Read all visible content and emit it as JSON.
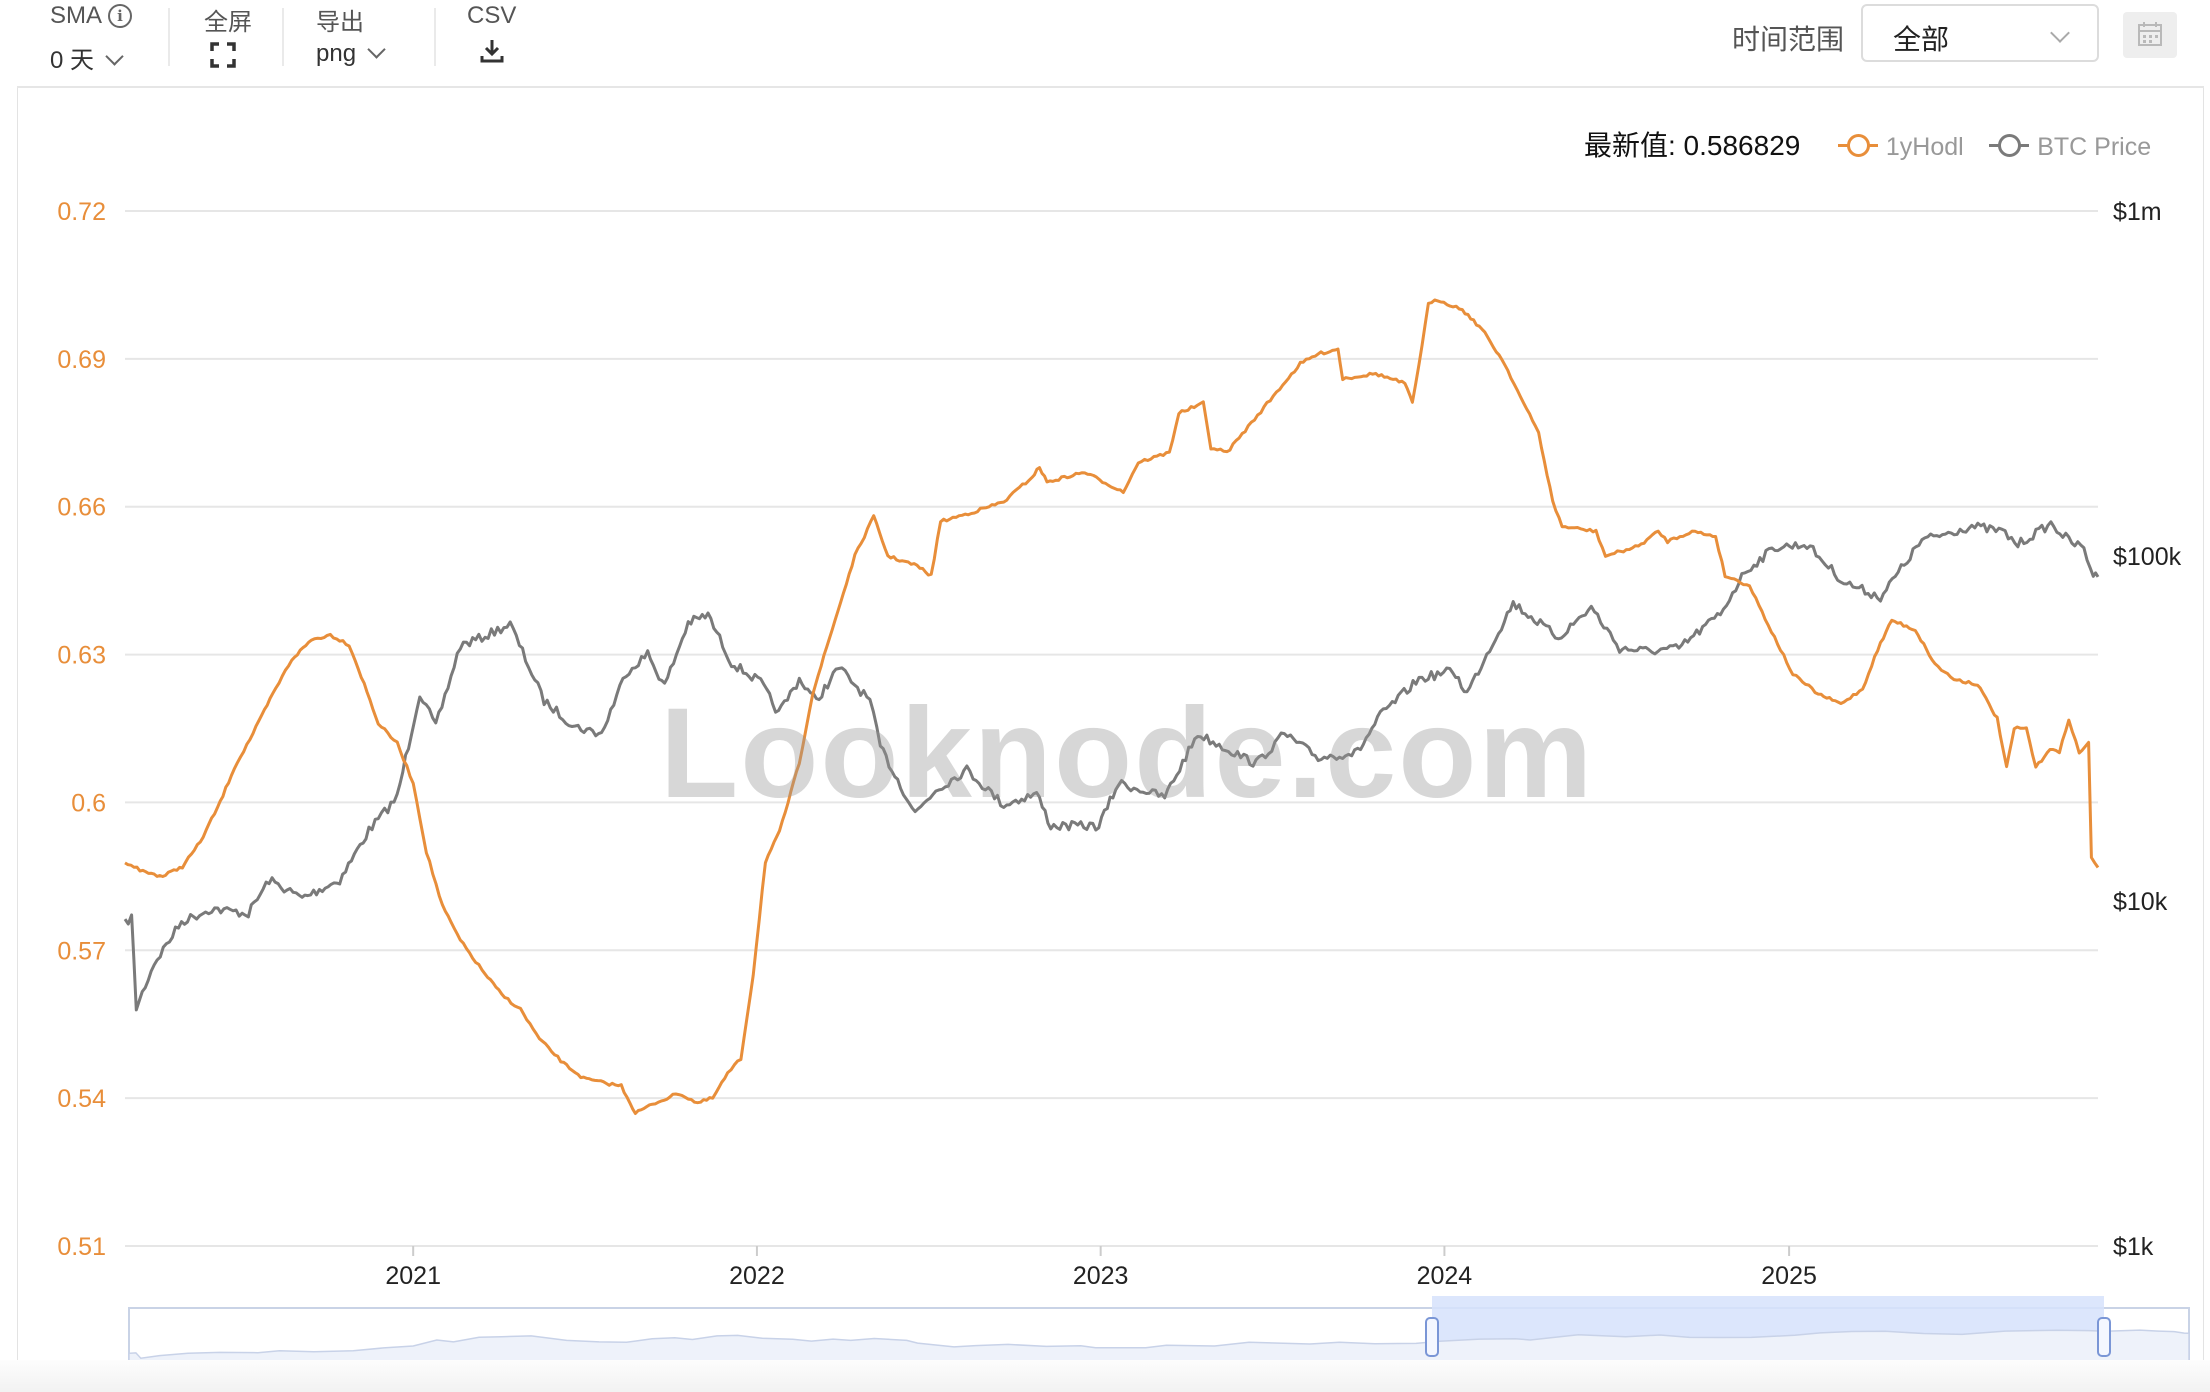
{
  "toolbar": {
    "sma_label": "SMA",
    "sma_value": "0 天",
    "fullscreen_label": "全屏",
    "export_label": "导出",
    "export_value": "png",
    "csv_label": "CSV",
    "time_range_label": "时间范围",
    "time_range_value": "全部"
  },
  "legend": {
    "latest_value_text": "最新值: 0.586829",
    "series_1": "1yHodl",
    "series_2": "BTC Price"
  },
  "watermark": "Looknode.com",
  "colors": {
    "hodl": "#e88e3a",
    "btc": "#7a7a7a",
    "axis_left": "#e88e3a",
    "grid": "#e6e6e6",
    "navigator_selected": "#d6e2fb"
  },
  "chart_data": {
    "type": "line",
    "x_tick_labels": [
      "2021",
      "2022",
      "2023",
      "2024",
      "2025"
    ],
    "y_left": {
      "ticks": [
        0.72,
        0.69,
        0.66,
        0.63,
        0.6,
        0.57,
        0.54,
        0.51
      ],
      "tick_labels": [
        "0.72",
        "0.69",
        "0.66",
        "0.63",
        "0.6",
        "0.57",
        "0.54",
        "0.51"
      ],
      "range": [
        0.51,
        0.72
      ]
    },
    "y_right": {
      "scale": "log",
      "tick_labels": [
        "$1m",
        "$100k",
        "$10k",
        "$1k"
      ],
      "ticks": [
        1000000,
        100000,
        10000,
        1000
      ],
      "range": [
        1000,
        1000000
      ]
    },
    "x_range": [
      "2020-03-01",
      "2025-11-25"
    ],
    "series": [
      {
        "name": "1yHodl",
        "axis": "left",
        "points": [
          [
            "2020-03-01",
            0.588
          ],
          [
            "2020-03-20",
            0.586
          ],
          [
            "2020-04-10",
            0.585
          ],
          [
            "2020-05-01",
            0.587
          ],
          [
            "2020-05-20",
            0.592
          ],
          [
            "2020-06-10",
            0.6
          ],
          [
            "2020-06-25",
            0.607
          ],
          [
            "2020-07-15",
            0.614
          ],
          [
            "2020-08-05",
            0.622
          ],
          [
            "2020-08-25",
            0.629
          ],
          [
            "2020-09-15",
            0.633
          ],
          [
            "2020-10-05",
            0.634
          ],
          [
            "2020-10-25",
            0.632
          ],
          [
            "2020-11-10",
            0.624
          ],
          [
            "2020-11-25",
            0.616
          ],
          [
            "2020-12-15",
            0.612
          ],
          [
            "2021-01-01",
            0.604
          ],
          [
            "2021-01-15",
            0.59
          ],
          [
            "2021-02-01",
            0.579
          ],
          [
            "2021-02-20",
            0.572
          ],
          [
            "2021-03-15",
            0.566
          ],
          [
            "2021-04-05",
            0.561
          ],
          [
            "2021-04-25",
            0.558
          ],
          [
            "2021-05-15",
            0.552
          ],
          [
            "2021-06-10",
            0.547
          ],
          [
            "2021-07-01",
            0.544
          ],
          [
            "2021-07-25",
            0.543
          ],
          [
            "2021-08-10",
            0.5425
          ],
          [
            "2021-08-25",
            0.537
          ],
          [
            "2021-09-15",
            0.539
          ],
          [
            "2021-10-10",
            0.541
          ],
          [
            "2021-10-30",
            0.539
          ],
          [
            "2021-11-15",
            0.54
          ],
          [
            "2021-12-01",
            0.545
          ],
          [
            "2021-12-15",
            0.548
          ],
          [
            "2021-12-28",
            0.565
          ],
          [
            "2022-01-10",
            0.588
          ],
          [
            "2022-01-25",
            0.594
          ],
          [
            "2022-02-15",
            0.608
          ],
          [
            "2022-03-01",
            0.622
          ],
          [
            "2022-03-25",
            0.637
          ],
          [
            "2022-04-15",
            0.65
          ],
          [
            "2022-05-05",
            0.658
          ],
          [
            "2022-05-20",
            0.65
          ],
          [
            "2022-06-20",
            0.648
          ],
          [
            "2022-07-05",
            0.646
          ],
          [
            "2022-07-15",
            0.657
          ],
          [
            "2022-08-20",
            0.659
          ],
          [
            "2022-09-20",
            0.661
          ],
          [
            "2022-10-20",
            0.666
          ],
          [
            "2022-10-28",
            0.668
          ],
          [
            "2022-11-05",
            0.665
          ],
          [
            "2022-12-15",
            0.667
          ],
          [
            "2023-01-25",
            0.663
          ],
          [
            "2023-02-10",
            0.669
          ],
          [
            "2023-03-15",
            0.671
          ],
          [
            "2023-03-25",
            0.679
          ],
          [
            "2023-04-20",
            0.681
          ],
          [
            "2023-04-28",
            0.672
          ],
          [
            "2023-05-15",
            0.671
          ],
          [
            "2023-06-10",
            0.677
          ],
          [
            "2023-07-10",
            0.684
          ],
          [
            "2023-08-01",
            0.689
          ],
          [
            "2023-08-20",
            0.691
          ],
          [
            "2023-09-10",
            0.692
          ],
          [
            "2023-09-15",
            0.686
          ],
          [
            "2023-10-20",
            0.687
          ],
          [
            "2023-11-20",
            0.685
          ],
          [
            "2023-11-28",
            0.681
          ],
          [
            "2023-12-05",
            0.689
          ],
          [
            "2023-12-15",
            0.701
          ],
          [
            "2023-12-25",
            0.702
          ],
          [
            "2024-01-20",
            0.7
          ],
          [
            "2024-02-10",
            0.696
          ],
          [
            "2024-03-05",
            0.689
          ],
          [
            "2024-03-25",
            0.681
          ],
          [
            "2024-04-10",
            0.675
          ],
          [
            "2024-04-25",
            0.661
          ],
          [
            "2024-05-05",
            0.656
          ],
          [
            "2024-06-10",
            0.655
          ],
          [
            "2024-06-20",
            0.65
          ],
          [
            "2024-07-25",
            0.652
          ],
          [
            "2024-08-15",
            0.655
          ],
          [
            "2024-08-25",
            0.653
          ],
          [
            "2024-09-20",
            0.655
          ],
          [
            "2024-10-15",
            0.654
          ],
          [
            "2024-10-25",
            0.646
          ],
          [
            "2024-11-20",
            0.644
          ],
          [
            "2024-12-10",
            0.636
          ],
          [
            "2025-01-05",
            0.626
          ],
          [
            "2025-02-01",
            0.622
          ],
          [
            "2025-02-25",
            0.62
          ],
          [
            "2025-03-20",
            0.623
          ],
          [
            "2025-04-05",
            0.631
          ],
          [
            "2025-04-20",
            0.637
          ],
          [
            "2025-05-15",
            0.635
          ],
          [
            "2025-06-05",
            0.628
          ],
          [
            "2025-06-25",
            0.625
          ],
          [
            "2025-07-20",
            0.624
          ],
          [
            "2025-08-10",
            0.617
          ],
          [
            "2025-08-20",
            0.607
          ],
          [
            "2025-08-28",
            0.615
          ],
          [
            "2025-09-10",
            0.615
          ],
          [
            "2025-09-20",
            0.607
          ],
          [
            "2025-10-05",
            0.611
          ],
          [
            "2025-10-15",
            0.61
          ],
          [
            "2025-10-25",
            0.617
          ],
          [
            "2025-11-05",
            0.61
          ],
          [
            "2025-11-15",
            0.612
          ],
          [
            "2025-11-18",
            0.589
          ],
          [
            "2025-11-25",
            0.5868
          ]
        ]
      },
      {
        "name": "BTC Price",
        "axis": "right",
        "points": [
          [
            "2020-03-01",
            8600
          ],
          [
            "2020-03-08",
            9000
          ],
          [
            "2020-03-13",
            4900
          ],
          [
            "2020-04-01",
            6600
          ],
          [
            "2020-04-30",
            8700
          ],
          [
            "2020-06-01",
            9500
          ],
          [
            "2020-07-10",
            9200
          ],
          [
            "2020-08-01",
            11500
          ],
          [
            "2020-09-05",
            10200
          ],
          [
            "2020-10-15",
            11500
          ],
          [
            "2020-11-15",
            16000
          ],
          [
            "2020-12-15",
            20000
          ],
          [
            "2021-01-08",
            40000
          ],
          [
            "2021-01-25",
            32000
          ],
          [
            "2021-02-20",
            55000
          ],
          [
            "2021-03-15",
            58000
          ],
          [
            "2021-04-14",
            63500
          ],
          [
            "2021-05-20",
            38000
          ],
          [
            "2021-06-22",
            32000
          ],
          [
            "2021-07-20",
            30500
          ],
          [
            "2021-08-15",
            46000
          ],
          [
            "2021-09-07",
            52000
          ],
          [
            "2021-09-25",
            42000
          ],
          [
            "2021-10-20",
            64000
          ],
          [
            "2021-11-10",
            67500
          ],
          [
            "2021-12-05",
            49000
          ],
          [
            "2022-01-05",
            43000
          ],
          [
            "2022-01-24",
            35000
          ],
          [
            "2022-02-15",
            44000
          ],
          [
            "2022-03-05",
            38000
          ],
          [
            "2022-03-29",
            47500
          ],
          [
            "2022-05-01",
            38000
          ],
          [
            "2022-05-12",
            28000
          ],
          [
            "2022-06-18",
            18000
          ],
          [
            "2022-07-10",
            21000
          ],
          [
            "2022-08-12",
            24000
          ],
          [
            "2022-09-20",
            19000
          ],
          [
            "2022-10-25",
            20500
          ],
          [
            "2022-11-09",
            16500
          ],
          [
            "2022-12-30",
            16500
          ],
          [
            "2023-01-20",
            22000
          ],
          [
            "2023-03-10",
            20000
          ],
          [
            "2023-04-14",
            30500
          ],
          [
            "2023-06-15",
            25000
          ],
          [
            "2023-07-15",
            30500
          ],
          [
            "2023-08-20",
            26000
          ],
          [
            "2023-10-01",
            27000
          ],
          [
            "2023-10-25",
            34500
          ],
          [
            "2023-12-05",
            44000
          ],
          [
            "2024-01-10",
            46500
          ],
          [
            "2024-01-25",
            40000
          ],
          [
            "2024-02-15",
            52000
          ],
          [
            "2024-03-14",
            73000
          ],
          [
            "2024-05-01",
            58000
          ],
          [
            "2024-06-05",
            71000
          ],
          [
            "2024-07-05",
            54000
          ],
          [
            "2024-08-05",
            53000
          ],
          [
            "2024-09-06",
            54000
          ],
          [
            "2024-10-20",
            68000
          ],
          [
            "2024-11-15",
            90000
          ],
          [
            "2024-12-17",
            106000
          ],
          [
            "2025-01-20",
            108000
          ],
          [
            "2025-02-28",
            84000
          ],
          [
            "2025-04-08",
            76000
          ],
          [
            "2025-05-22",
            111000
          ],
          [
            "2025-07-14",
            122000
          ],
          [
            "2025-08-15",
            118000
          ],
          [
            "2025-09-01",
            108000
          ],
          [
            "2025-10-06",
            124000
          ],
          [
            "2025-10-25",
            111000
          ],
          [
            "2025-11-10",
            105000
          ],
          [
            "2025-11-20",
            88000
          ],
          [
            "2025-11-25",
            87000
          ]
        ]
      }
    ]
  }
}
